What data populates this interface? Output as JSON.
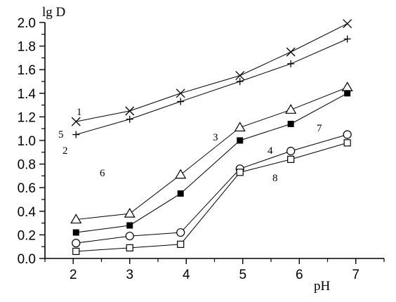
{
  "chart_data": {
    "type": "line",
    "xlabel": "pH",
    "ylabel": "lg D",
    "xlim": [
      1.5,
      7.5
    ],
    "ylim": [
      0.0,
      2.0
    ],
    "xticks": [
      "2",
      "3",
      "4",
      "5",
      "6",
      "7"
    ],
    "yticks": [
      "0.0",
      "0.2",
      "0.4",
      "0.6",
      "0.8",
      "1.0",
      "1.2",
      "1.4",
      "1.6",
      "1.8",
      "2.0"
    ],
    "grid": false,
    "annotations": [
      "1",
      "5",
      "2",
      "6",
      "3",
      "7",
      "4",
      "8"
    ],
    "series": [
      {
        "marker": "cross",
        "x": [
          2.05,
          3.0,
          3.9,
          4.95,
          5.85,
          6.85
        ],
        "values": [
          1.16,
          1.25,
          1.4,
          1.55,
          1.75,
          1.99
        ]
      },
      {
        "marker": "plus",
        "x": [
          2.05,
          3.0,
          3.9,
          4.95,
          5.85,
          6.85
        ],
        "values": [
          1.05,
          1.18,
          1.33,
          1.5,
          1.65,
          1.86
        ]
      },
      {
        "marker": "open-triangle",
        "x": [
          2.05,
          3.0,
          3.9,
          4.95,
          5.85,
          6.85
        ],
        "values": [
          0.33,
          0.38,
          0.71,
          1.11,
          1.26,
          1.45
        ]
      },
      {
        "marker": "filled-square",
        "x": [
          2.05,
          3.0,
          3.9,
          4.95,
          5.85,
          6.85
        ],
        "values": [
          0.22,
          0.28,
          0.55,
          1.0,
          1.14,
          1.4
        ]
      },
      {
        "marker": "open-circle",
        "x": [
          2.05,
          3.0,
          3.9,
          4.95,
          5.85,
          6.85
        ],
        "values": [
          0.13,
          0.19,
          0.22,
          0.76,
          0.91,
          1.05
        ]
      },
      {
        "marker": "open-square",
        "x": [
          2.05,
          3.0,
          3.9,
          4.95,
          5.85,
          6.85
        ],
        "values": [
          0.06,
          0.09,
          0.12,
          0.73,
          0.84,
          0.98
        ]
      }
    ]
  }
}
